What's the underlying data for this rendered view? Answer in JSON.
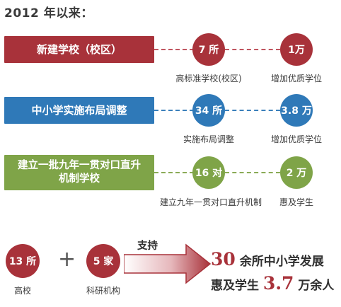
{
  "title": "2012 年以来：",
  "rows": [
    {
      "bar_label": "新建学校（校区）",
      "circle1": "7 所",
      "caption1": "高标准学校(校区)",
      "circle2": "1万",
      "caption2": "增加优质学位",
      "color": "#a8323a"
    },
    {
      "bar_label": "中小学实施布局调整",
      "circle1": "34 所",
      "caption1": "实施布局调整",
      "circle2": "3.8 万",
      "caption2": "增加优质学位",
      "color": "#2f79b8"
    },
    {
      "bar_label_line1": "建立一批九年一贯对口直升",
      "bar_label_line2": "机制学校",
      "circle1": "16 对",
      "caption1": "建立九年一贯对口直升机制",
      "circle2": "2 万",
      "caption2": "惠及学生",
      "color": "#7fa448"
    }
  ],
  "bottom": {
    "left_circle": "13 所",
    "left_caption": "高校",
    "plus": "+",
    "right_circle": "5 家",
    "right_caption": "科研机构",
    "arrow_label": "支持",
    "result_num1": "30",
    "result_text1": " 余所中小学发展",
    "result_text2a": "惠及学生 ",
    "result_num2": "3.7",
    "result_text2b": " 万余人"
  }
}
